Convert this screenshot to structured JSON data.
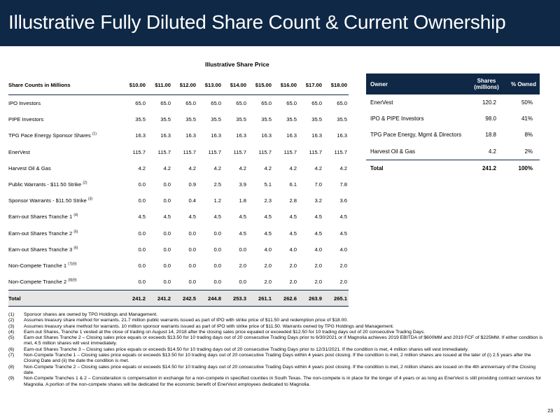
{
  "page": {
    "title": "Illustrative Fully Diluted Share Count & Current Ownership",
    "section_header": "Illustrative Share Price",
    "page_number": "23"
  },
  "share_table": {
    "row_header": "Share Counts in Millions",
    "prices": [
      "$10.00",
      "$11.00",
      "$12.00",
      "$13.00",
      "$14.00",
      "$15.00",
      "$16.00",
      "$17.00",
      "$18.00"
    ],
    "rows": [
      {
        "label": "IPO Investors",
        "sup": "",
        "values": [
          "65.0",
          "65.0",
          "65.0",
          "65.0",
          "65.0",
          "65.0",
          "65.0",
          "65.0",
          "65.0"
        ]
      },
      {
        "label": "PIPE Investors",
        "sup": "",
        "values": [
          "35.5",
          "35.5",
          "35.5",
          "35.5",
          "35.5",
          "35.5",
          "35.5",
          "35.5",
          "35.5"
        ]
      },
      {
        "label": "TPG Pace Energy Sponsor Shares",
        "sup": "(1)",
        "values": [
          "16.3",
          "16.3",
          "16.3",
          "16.3",
          "16.3",
          "16.3",
          "16.3",
          "16.3",
          "16.3"
        ]
      },
      {
        "label": "EnerVest",
        "sup": "",
        "values": [
          "115.7",
          "115.7",
          "115.7",
          "115.7",
          "115.7",
          "115.7",
          "115.7",
          "115.7",
          "115.7"
        ]
      },
      {
        "label": "Harvest Oil & Gas",
        "sup": "",
        "values": [
          "4.2",
          "4.2",
          "4.2",
          "4.2",
          "4.2",
          "4.2",
          "4.2",
          "4.2",
          "4.2"
        ]
      },
      {
        "label": "Public Warrants - $11.50 Strike",
        "sup": "(2)",
        "values": [
          "0.0",
          "0.0",
          "0.9",
          "2.5",
          "3.9",
          "5.1",
          "6.1",
          "7.0",
          "7.8"
        ]
      },
      {
        "label": "Sponsor Warrants - $11.50 Strike",
        "sup": "(3)",
        "values": [
          "0.0",
          "0.0",
          "0.4",
          "1.2",
          "1.8",
          "2.3",
          "2.8",
          "3.2",
          "3.6"
        ]
      },
      {
        "label": "Earn-out Shares Tranche 1",
        "sup": "(4)",
        "values": [
          "4.5",
          "4.5",
          "4.5",
          "4.5",
          "4.5",
          "4.5",
          "4.5",
          "4.5",
          "4.5"
        ]
      },
      {
        "label": "Earn-out Shares Tranche 2",
        "sup": "(5)",
        "values": [
          "0.0",
          "0.0",
          "0.0",
          "0.0",
          "4.5",
          "4.5",
          "4.5",
          "4.5",
          "4.5"
        ]
      },
      {
        "label": "Earn-out Shares Tranche 3",
        "sup": "(6)",
        "values": [
          "0.0",
          "0.0",
          "0.0",
          "0.0",
          "0.0",
          "4.0",
          "4.0",
          "4.0",
          "4.0"
        ]
      },
      {
        "label": "Non-Compete Tranche 1",
        "sup": "(7)(9)",
        "values": [
          "0.0",
          "0.0",
          "0.0",
          "0.0",
          "2.0",
          "2.0",
          "2.0",
          "2.0",
          "2.0"
        ]
      },
      {
        "label": "Non-Compete Tranche 2",
        "sup": "(8)(9)",
        "values": [
          "0.0",
          "0.0",
          "0.0",
          "0.0",
          "0.0",
          "2.0",
          "2.0",
          "2.0",
          "2.0"
        ]
      }
    ],
    "total": {
      "label": "Total",
      "values": [
        "241.2",
        "241.2",
        "242.5",
        "244.8",
        "253.3",
        "261.1",
        "262.6",
        "263.9",
        "265.1"
      ]
    }
  },
  "ownership_table": {
    "headers": {
      "owner": "Owner",
      "shares_line1": "Shares",
      "shares_line2": "(millions)",
      "pct": "% Owned"
    },
    "rows": [
      {
        "owner": "EnerVest",
        "shares": "120.2",
        "pct": "50%"
      },
      {
        "owner": "IPO & PIPE Investors",
        "shares": "98.0",
        "pct": "41%"
      },
      {
        "owner": "TPG Pace Energy, Mgmt & Directors",
        "shares": "18.8",
        "pct": "8%"
      },
      {
        "owner": "Harvest Oil & Gas",
        "shares": "4.2",
        "pct": "2%"
      }
    ],
    "total": {
      "owner": "Total",
      "shares": "241.2",
      "pct": "100%"
    }
  },
  "footnotes": [
    {
      "num": "(1)",
      "text": "Sponsor shares are owned by TPG Holdings and Management."
    },
    {
      "num": "(2)",
      "text": "Assumes treasury share method for warrants. 21.7 million public warrants issued as part of IPO with strike price of $11.50 and redemption price of $18.00."
    },
    {
      "num": "(3)",
      "text": "Assumes treasury share method for warrants. 10 million sponsor warrants issued as part of IPO with strike price of $11.50. Warrants owned by TPG Holdings and Management."
    },
    {
      "num": "(4)",
      "text": "Earn-out Shares, Tranche 1 vested at the close of trading on August 14, 2018 after the closing sales price equaled or exceeded $12.50 for 10 trading days out of 20 consecutive Trading Days."
    },
    {
      "num": "(5)",
      "text": "Earn-out Shares Tranche 2 – Closing sales price equals or exceeds $13.50 for 10 trading days out of 20 consecutive Trading Days prior to 6/30/2021 or if Magnolia achieves 2019 EBITDA of $600MM and 2019 FCF of $225MM. If either condition is met, 4.5 million shares will vest immediately."
    },
    {
      "num": "(6)",
      "text": "Earn-out Shares Tranche 3 – Closing sales price equals or exceeds $14.50 for 10 trading days out of 20 consecutive Trading Days prior to 12/31/2021. If the condition is met, 4 million shares will vest immediately."
    },
    {
      "num": "(7)",
      "text": "Non-Compete Tranche 1 – Closing sales price equals or exceeds $13.50 for 10 trading days out of 20 consecutive Trading Days within 4 years post closing. If the condition is met, 2 million shares are issued at the later of (i) 2.5 years after the Closing Date and (ii) the date the condition is met."
    },
    {
      "num": "(8)",
      "text": "Non-Compete Tranche 2 – Closing sales price equals or exceeds $14.50 for 10 trading days out of 20 consecutive Trading Days within 4 years post closing. If the condition is met, 2 million shares are issued on the 4th anniversary of the Closing date."
    },
    {
      "num": "(9)",
      "text": "Non-Compete Tranches 1 & 2 – Consideration is compensation in exchange for a non-compete in specified counties in South Texas. The non-compete is in place for the longer of 4 years or as long as EnerVest is still providing contract services for Magnolia. A portion of the non-compete shares will be dedicated for the economic benefit of EnerVest employees dedicated to Magnolia."
    }
  ]
}
